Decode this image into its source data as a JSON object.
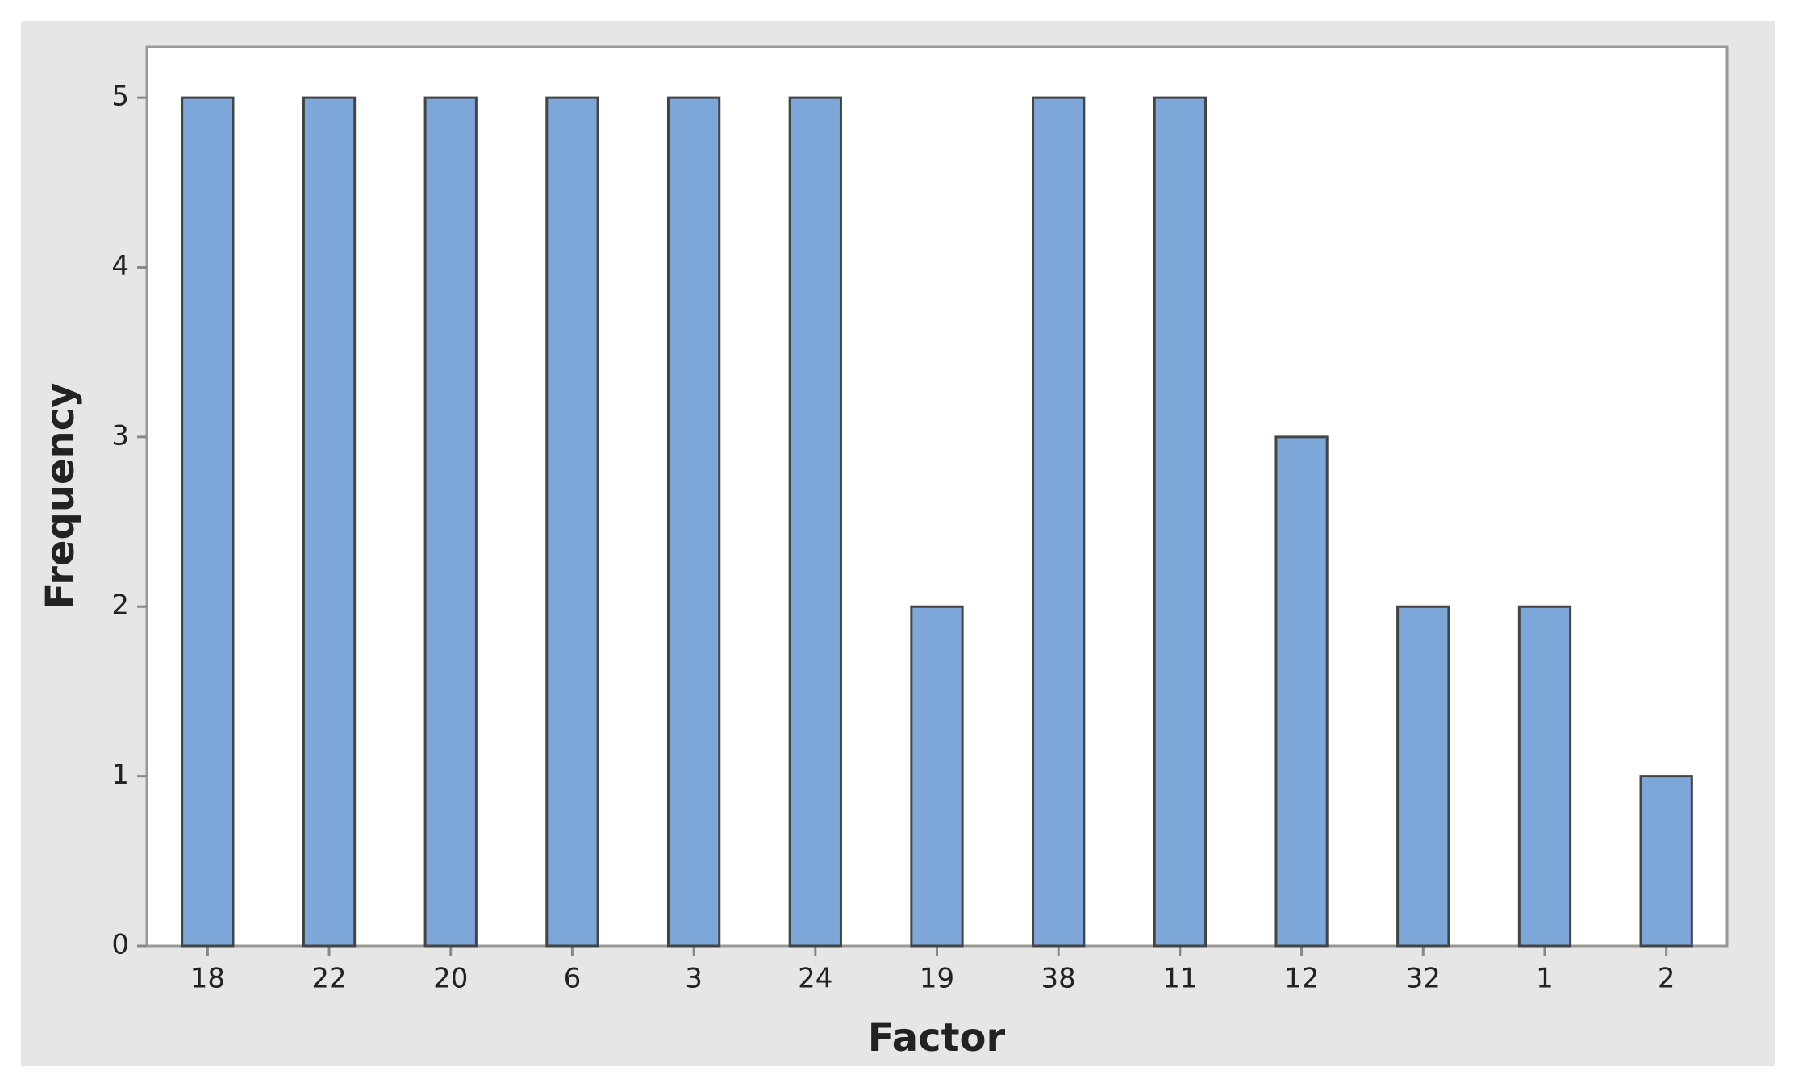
{
  "chart_data": {
    "type": "bar",
    "x_label": "Factor",
    "y_label": "Frequency",
    "categories": [
      "18",
      "22",
      "20",
      "6",
      "3",
      "24",
      "19",
      "38",
      "11",
      "12",
      "32",
      "1",
      "2"
    ],
    "values": [
      5,
      5,
      5,
      5,
      5,
      5,
      2,
      5,
      5,
      3,
      2,
      2,
      1
    ],
    "color": "#7da6d9",
    "ylim": [
      0,
      5.3
    ],
    "yticks": [
      0,
      1,
      2,
      3,
      4,
      5
    ],
    "grid": false
  }
}
